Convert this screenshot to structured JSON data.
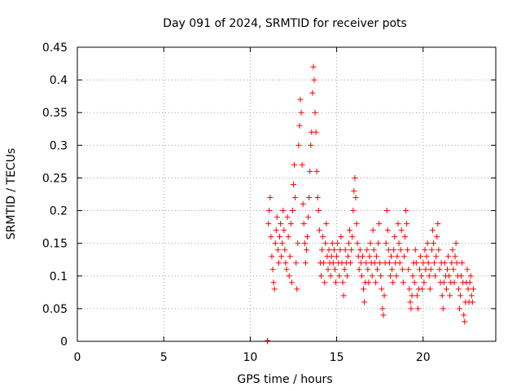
{
  "chart_data": {
    "type": "scatter",
    "title": "Day 091 of 2024, SRMTID for receiver pots",
    "xlabel": "GPS time / hours",
    "ylabel": "SRMTID / TECUs",
    "xlim": [
      0,
      24.2
    ],
    "ylim": [
      0,
      0.45
    ],
    "xticks": [
      0,
      5,
      10,
      15,
      20
    ],
    "xtick_labels": [
      "0",
      "5",
      "10",
      "15",
      "20"
    ],
    "yticks": [
      0,
      0.05,
      0.1,
      0.15,
      0.2,
      0.25,
      0.3,
      0.35,
      0.4,
      0.45
    ],
    "ytick_labels": [
      "0",
      "0.05",
      "0.1",
      "0.15",
      "0.2",
      "0.25",
      "0.3",
      "0.35",
      "0.4",
      "0.45"
    ],
    "grid": true,
    "marker": "+",
    "color": "#ff0000",
    "series": [
      {
        "name": "SRMTID",
        "points": [
          [
            11.0,
            0.0
          ],
          [
            11.0,
            0.001
          ],
          [
            11.05,
            0.18
          ],
          [
            11.1,
            0.2
          ],
          [
            11.15,
            0.22
          ],
          [
            11.2,
            0.16
          ],
          [
            11.25,
            0.13
          ],
          [
            11.3,
            0.11
          ],
          [
            11.35,
            0.09
          ],
          [
            11.4,
            0.08
          ],
          [
            11.45,
            0.15
          ],
          [
            11.5,
            0.17
          ],
          [
            11.55,
            0.19
          ],
          [
            11.6,
            0.14
          ],
          [
            11.65,
            0.12
          ],
          [
            11.7,
            0.16
          ],
          [
            11.75,
            0.18
          ],
          [
            11.8,
            0.13
          ],
          [
            11.85,
            0.15
          ],
          [
            11.9,
            0.2
          ],
          [
            11.95,
            0.17
          ],
          [
            12.0,
            0.14
          ],
          [
            12.05,
            0.12
          ],
          [
            12.1,
            0.11
          ],
          [
            12.15,
            0.19
          ],
          [
            12.2,
            0.16
          ],
          [
            12.25,
            0.1
          ],
          [
            12.3,
            0.13
          ],
          [
            12.35,
            0.18
          ],
          [
            12.4,
            0.09
          ],
          [
            12.45,
            0.2
          ],
          [
            12.5,
            0.24
          ],
          [
            12.55,
            0.27
          ],
          [
            12.6,
            0.22
          ],
          [
            12.65,
            0.12
          ],
          [
            12.7,
            0.08
          ],
          [
            12.75,
            0.15
          ],
          [
            12.8,
            0.3
          ],
          [
            12.85,
            0.33
          ],
          [
            12.9,
            0.37
          ],
          [
            12.95,
            0.35
          ],
          [
            13.0,
            0.27
          ],
          [
            13.05,
            0.21
          ],
          [
            13.1,
            0.18
          ],
          [
            13.15,
            0.15
          ],
          [
            13.2,
            0.12
          ],
          [
            13.25,
            0.14
          ],
          [
            13.3,
            0.16
          ],
          [
            13.35,
            0.19
          ],
          [
            13.4,
            0.22
          ],
          [
            13.45,
            0.26
          ],
          [
            13.5,
            0.3
          ],
          [
            13.55,
            0.32
          ],
          [
            13.6,
            0.38
          ],
          [
            13.65,
            0.42
          ],
          [
            13.7,
            0.4
          ],
          [
            13.75,
            0.35
          ],
          [
            13.8,
            0.32
          ],
          [
            13.85,
            0.26
          ],
          [
            13.9,
            0.22
          ],
          [
            13.95,
            0.2
          ],
          [
            14.0,
            0.17
          ],
          [
            14.05,
            0.12
          ],
          [
            14.1,
            0.1
          ],
          [
            14.15,
            0.14
          ],
          [
            14.2,
            0.16
          ],
          [
            14.25,
            0.12
          ],
          [
            14.3,
            0.09
          ],
          [
            14.35,
            0.15
          ],
          [
            14.4,
            0.18
          ],
          [
            14.45,
            0.13
          ],
          [
            14.5,
            0.11
          ],
          [
            14.55,
            0.14
          ],
          [
            14.6,
            0.12
          ],
          [
            14.65,
            0.1
          ],
          [
            14.7,
            0.13
          ],
          [
            14.75,
            0.15
          ],
          [
            14.8,
            0.12
          ],
          [
            14.85,
            0.14
          ],
          [
            14.9,
            0.11
          ],
          [
            14.95,
            0.09
          ],
          [
            15.0,
            0.13
          ],
          [
            15.05,
            0.15
          ],
          [
            15.1,
            0.12
          ],
          [
            15.15,
            0.1
          ],
          [
            15.2,
            0.14
          ],
          [
            15.25,
            0.16
          ],
          [
            15.3,
            0.12
          ],
          [
            15.35,
            0.09
          ],
          [
            15.4,
            0.07
          ],
          [
            15.45,
            0.11
          ],
          [
            15.5,
            0.14
          ],
          [
            15.55,
            0.12
          ],
          [
            15.6,
            0.1
          ],
          [
            15.65,
            0.13
          ],
          [
            15.7,
            0.15
          ],
          [
            15.75,
            0.17
          ],
          [
            15.8,
            0.12
          ],
          [
            15.85,
            0.14
          ],
          [
            15.9,
            0.16
          ],
          [
            15.95,
            0.2
          ],
          [
            16.0,
            0.23
          ],
          [
            16.05,
            0.25
          ],
          [
            16.1,
            0.22
          ],
          [
            16.15,
            0.18
          ],
          [
            16.2,
            0.15
          ],
          [
            16.25,
            0.13
          ],
          [
            16.3,
            0.11
          ],
          [
            16.35,
            0.14
          ],
          [
            16.4,
            0.12
          ],
          [
            16.45,
            0.1
          ],
          [
            16.5,
            0.13
          ],
          [
            16.55,
            0.08
          ],
          [
            16.6,
            0.06
          ],
          [
            16.65,
            0.09
          ],
          [
            16.7,
            0.12
          ],
          [
            16.75,
            0.14
          ],
          [
            16.8,
            0.11
          ],
          [
            16.85,
            0.09
          ],
          [
            16.9,
            0.13
          ],
          [
            16.95,
            0.15
          ],
          [
            17.0,
            0.12
          ],
          [
            17.05,
            0.1
          ],
          [
            17.1,
            0.17
          ],
          [
            17.15,
            0.14
          ],
          [
            17.2,
            0.12
          ],
          [
            17.25,
            0.09
          ],
          [
            17.3,
            0.13
          ],
          [
            17.35,
            0.11
          ],
          [
            17.4,
            0.15
          ],
          [
            17.45,
            0.18
          ],
          [
            17.5,
            0.12
          ],
          [
            17.55,
            0.1
          ],
          [
            17.6,
            0.08
          ],
          [
            17.65,
            0.05
          ],
          [
            17.7,
            0.04
          ],
          [
            17.75,
            0.07
          ],
          [
            17.8,
            0.12
          ],
          [
            17.85,
            0.15
          ],
          [
            17.9,
            0.2
          ],
          [
            17.95,
            0.17
          ],
          [
            18.0,
            0.14
          ],
          [
            18.05,
            0.12
          ],
          [
            18.1,
            0.1
          ],
          [
            18.15,
            0.13
          ],
          [
            18.2,
            0.11
          ],
          [
            18.25,
            0.09
          ],
          [
            18.3,
            0.14
          ],
          [
            18.35,
            0.16
          ],
          [
            18.4,
            0.12
          ],
          [
            18.45,
            0.1
          ],
          [
            18.5,
            0.13
          ],
          [
            18.55,
            0.18
          ],
          [
            18.6,
            0.15
          ],
          [
            18.65,
            0.12
          ],
          [
            18.7,
            0.14
          ],
          [
            18.75,
            0.17
          ],
          [
            18.8,
            0.11
          ],
          [
            18.85,
            0.09
          ],
          [
            18.9,
            0.13
          ],
          [
            18.95,
            0.16
          ],
          [
            19.0,
            0.2
          ],
          [
            19.05,
            0.18
          ],
          [
            19.1,
            0.14
          ],
          [
            19.15,
            0.11
          ],
          [
            19.2,
            0.08
          ],
          [
            19.25,
            0.06
          ],
          [
            19.3,
            0.05
          ],
          [
            19.35,
            0.07
          ],
          [
            19.4,
            0.1
          ],
          [
            19.45,
            0.12
          ],
          [
            19.5,
            0.09
          ],
          [
            19.55,
            0.14
          ],
          [
            19.6,
            0.12
          ],
          [
            19.65,
            0.07
          ],
          [
            19.7,
            0.05
          ],
          [
            19.75,
            0.08
          ],
          [
            19.8,
            0.11
          ],
          [
            19.85,
            0.13
          ],
          [
            19.9,
            0.1
          ],
          [
            19.95,
            0.08
          ],
          [
            20.0,
            0.12
          ],
          [
            20.05,
            0.09
          ],
          [
            20.1,
            0.14
          ],
          [
            20.15,
            0.11
          ],
          [
            20.2,
            0.13
          ],
          [
            20.25,
            0.15
          ],
          [
            20.3,
            0.12
          ],
          [
            20.35,
            0.1
          ],
          [
            20.4,
            0.08
          ],
          [
            20.45,
            0.11
          ],
          [
            20.5,
            0.14
          ],
          [
            20.55,
            0.17
          ],
          [
            20.6,
            0.15
          ],
          [
            20.65,
            0.12
          ],
          [
            20.7,
            0.1
          ],
          [
            20.75,
            0.13
          ],
          [
            20.8,
            0.16
          ],
          [
            20.85,
            0.18
          ],
          [
            20.9,
            0.14
          ],
          [
            20.95,
            0.11
          ],
          [
            21.0,
            0.09
          ],
          [
            21.05,
            0.12
          ],
          [
            21.1,
            0.07
          ],
          [
            21.15,
            0.05
          ],
          [
            21.2,
            0.09
          ],
          [
            21.25,
            0.12
          ],
          [
            21.3,
            0.1
          ],
          [
            21.35,
            0.08
          ],
          [
            21.4,
            0.11
          ],
          [
            21.45,
            0.13
          ],
          [
            21.5,
            0.1
          ],
          [
            21.55,
            0.07
          ],
          [
            21.6,
            0.09
          ],
          [
            21.65,
            0.12
          ],
          [
            21.7,
            0.14
          ],
          [
            21.75,
            0.11
          ],
          [
            21.8,
            0.09
          ],
          [
            21.85,
            0.13
          ],
          [
            21.9,
            0.15
          ],
          [
            21.95,
            0.12
          ],
          [
            22.0,
            0.1
          ],
          [
            22.05,
            0.08
          ],
          [
            22.1,
            0.05
          ],
          [
            22.15,
            0.07
          ],
          [
            22.2,
            0.1
          ],
          [
            22.25,
            0.12
          ],
          [
            22.3,
            0.09
          ],
          [
            22.35,
            0.04
          ],
          [
            22.4,
            0.03
          ],
          [
            22.45,
            0.06
          ],
          [
            22.5,
            0.09
          ],
          [
            22.55,
            0.11
          ],
          [
            22.6,
            0.08
          ],
          [
            22.65,
            0.06
          ],
          [
            22.7,
            0.09
          ],
          [
            22.75,
            0.1
          ],
          [
            22.8,
            0.07
          ],
          [
            22.85,
            0.06
          ],
          [
            22.9,
            0.08
          ]
        ]
      }
    ]
  }
}
